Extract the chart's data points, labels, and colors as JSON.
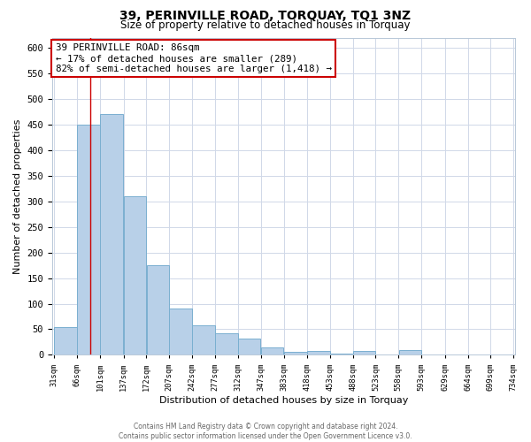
{
  "title": "39, PERINVILLE ROAD, TORQUAY, TQ1 3NZ",
  "subtitle": "Size of property relative to detached houses in Torquay",
  "xlabel": "Distribution of detached houses by size in Torquay",
  "ylabel": "Number of detached properties",
  "bar_left_edges": [
    31,
    66,
    101,
    137,
    172,
    207,
    242,
    277,
    312,
    347,
    383,
    418,
    453,
    488,
    523,
    558,
    593,
    629,
    664,
    699
  ],
  "bar_heights": [
    55,
    450,
    470,
    310,
    175,
    90,
    58,
    42,
    32,
    15,
    6,
    8,
    2,
    8,
    0,
    9,
    0,
    1,
    0,
    1
  ],
  "bin_width": 35,
  "bar_color": "#b8d0e8",
  "bar_edgecolor": "#7aafd0",
  "property_line_x": 86,
  "property_line_color": "#cc0000",
  "ylim": [
    0,
    620
  ],
  "yticks": [
    0,
    50,
    100,
    150,
    200,
    250,
    300,
    350,
    400,
    450,
    500,
    550,
    600
  ],
  "x_tick_labels": [
    "31sqm",
    "66sqm",
    "101sqm",
    "137sqm",
    "172sqm",
    "207sqm",
    "242sqm",
    "277sqm",
    "312sqm",
    "347sqm",
    "383sqm",
    "418sqm",
    "453sqm",
    "488sqm",
    "523sqm",
    "558sqm",
    "593sqm",
    "629sqm",
    "664sqm",
    "699sqm",
    "734sqm"
  ],
  "annotation_line1": "39 PERINVILLE ROAD: 86sqm",
  "annotation_line2": "← 17% of detached houses are smaller (289)",
  "annotation_line3": "82% of semi-detached houses are larger (1,418) →",
  "footer_line1": "Contains HM Land Registry data © Crown copyright and database right 2024.",
  "footer_line2": "Contains public sector information licensed under the Open Government Licence v3.0.",
  "bg_color": "#ffffff",
  "grid_color": "#d0d8e8"
}
